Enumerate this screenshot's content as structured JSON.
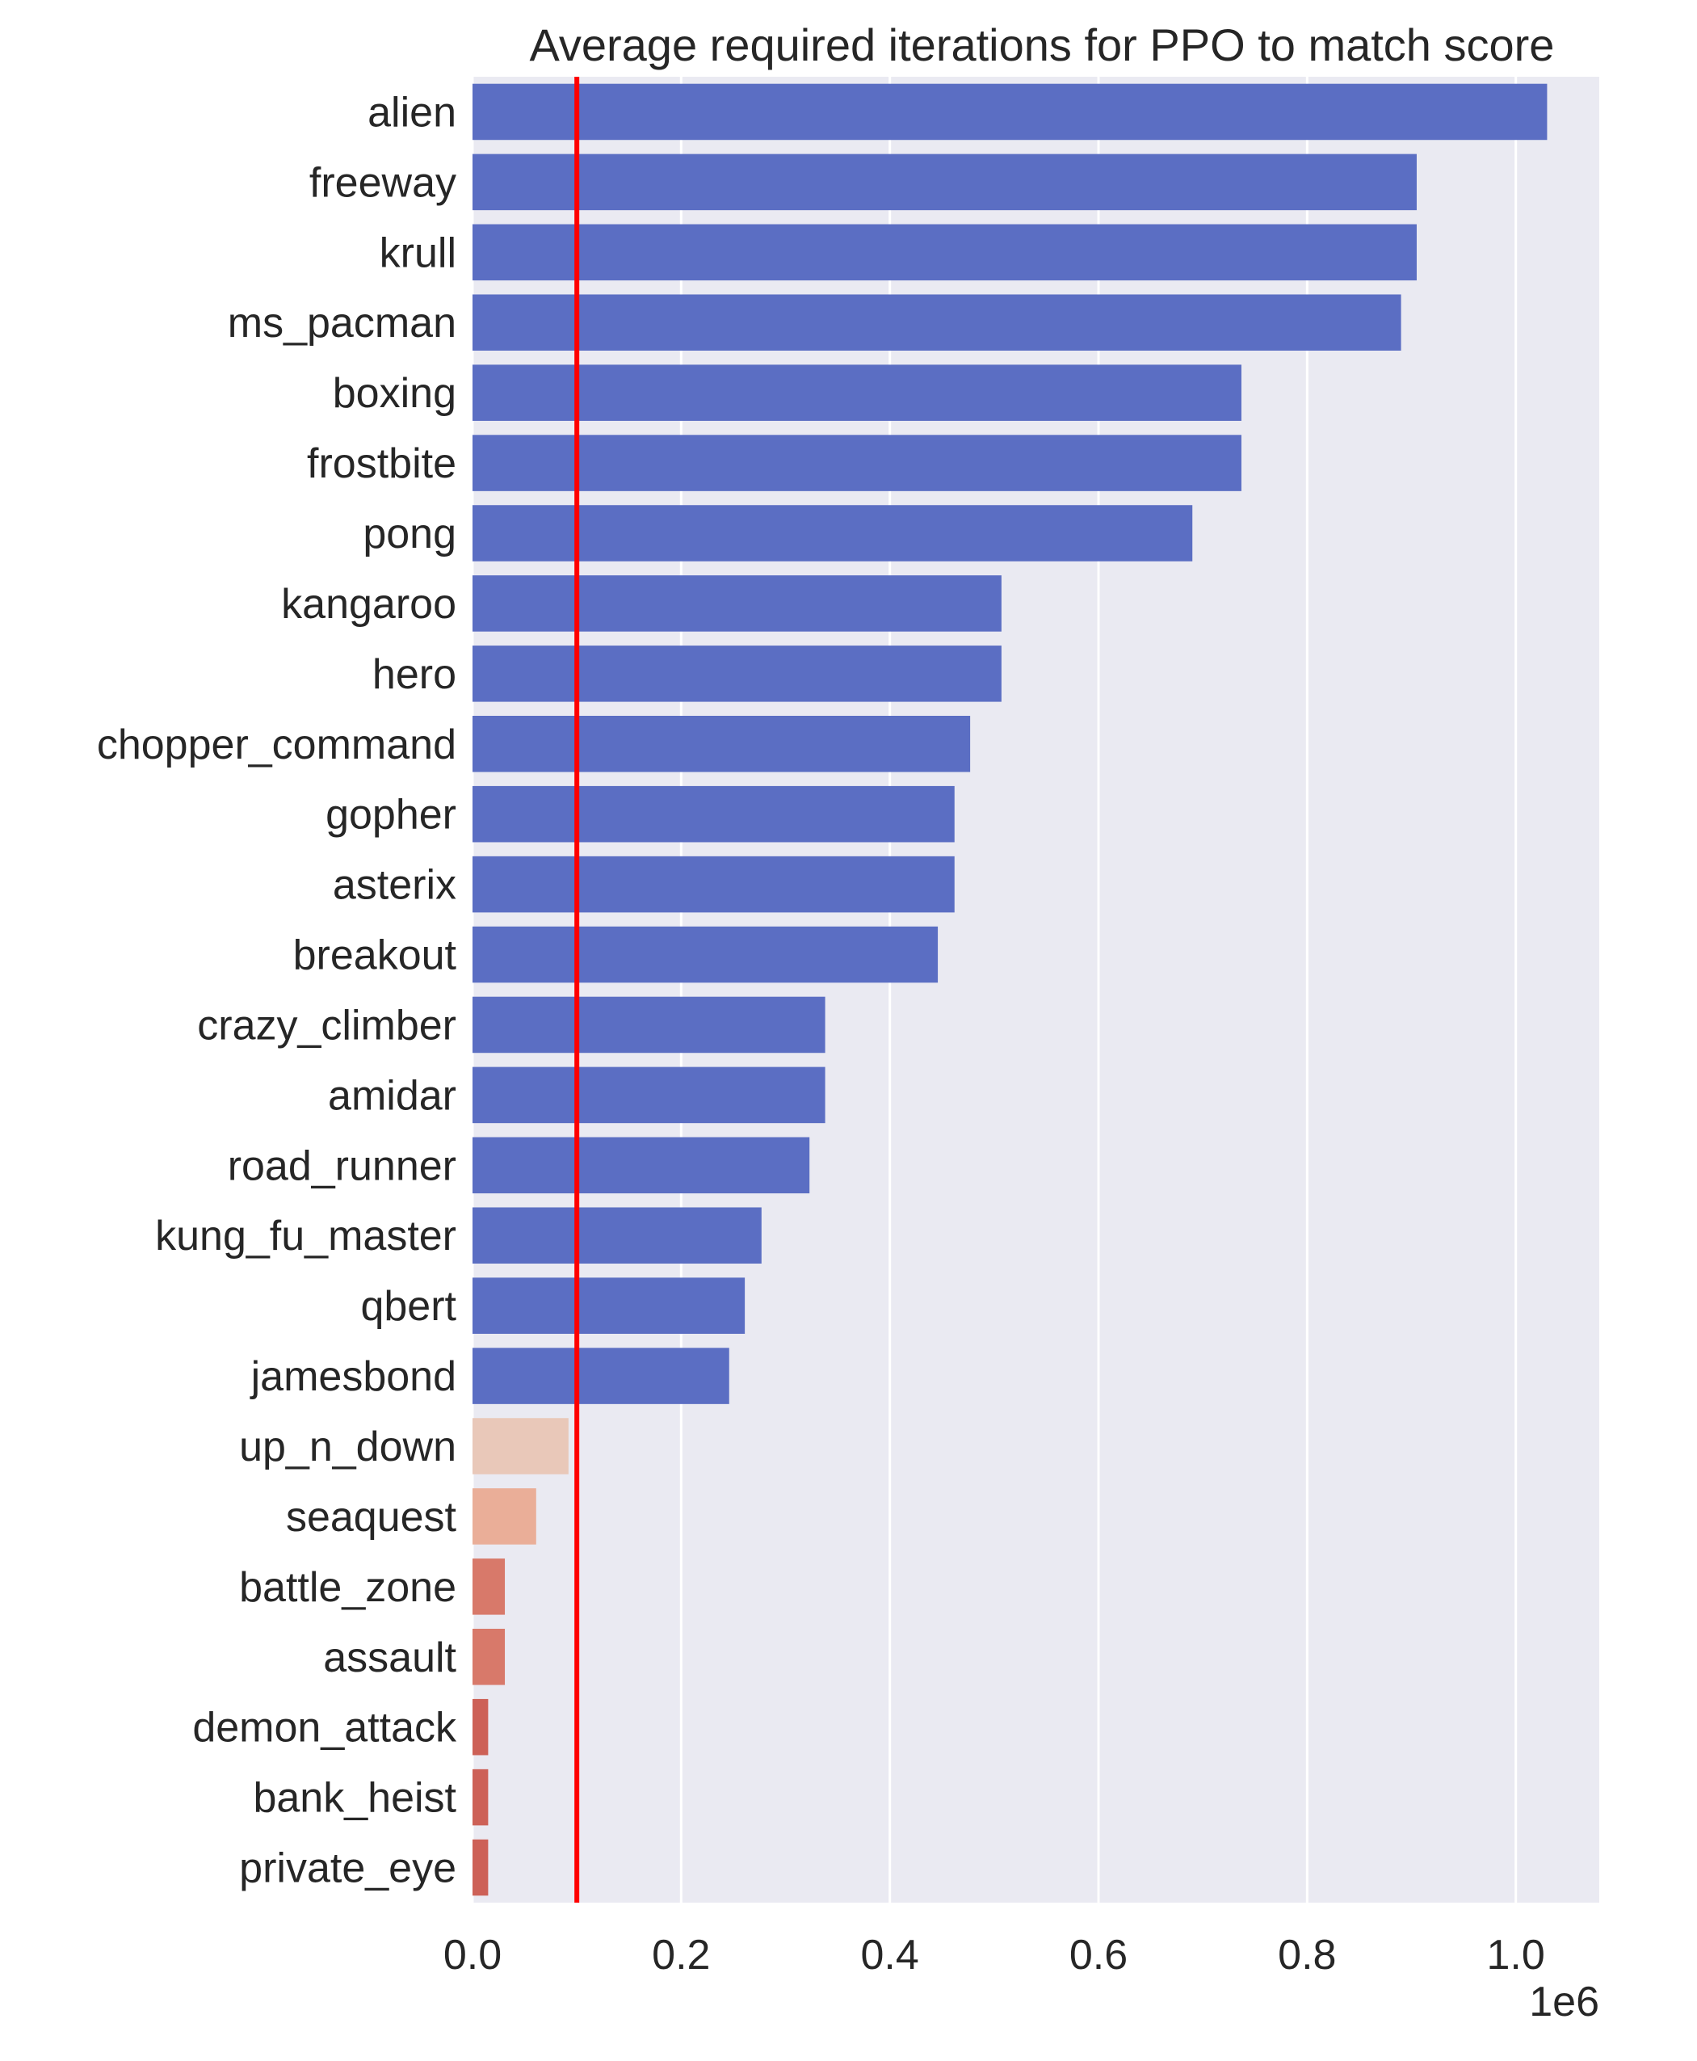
{
  "chart_data": {
    "type": "bar",
    "orientation": "horizontal",
    "title": "Average required iterations for PPO to match score",
    "xlabel": "",
    "ylabel": "",
    "offset_label": "1e6",
    "xlim": [
      0,
      1.08
    ],
    "xticks": [
      0.0,
      0.2,
      0.4,
      0.6,
      0.8,
      1.0
    ],
    "xtick_labels": [
      "0.0",
      "0.2",
      "0.4",
      "0.6",
      "0.8",
      "1.0"
    ],
    "grid": true,
    "reference_line": {
      "x": 0.1,
      "color": "#ff0000"
    },
    "categories": [
      "alien",
      "freeway",
      "krull",
      "ms_pacman",
      "boxing",
      "frostbite",
      "pong",
      "kangaroo",
      "hero",
      "chopper_command",
      "gopher",
      "asterix",
      "breakout",
      "crazy_climber",
      "amidar",
      "road_runner",
      "kung_fu_master",
      "qbert",
      "jamesbond",
      "up_n_down",
      "seaquest",
      "battle_zone",
      "assault",
      "demon_attack",
      "bank_heist",
      "private_eye"
    ],
    "values": [
      1.03,
      0.905,
      0.905,
      0.89,
      0.737,
      0.737,
      0.69,
      0.507,
      0.507,
      0.477,
      0.462,
      0.462,
      0.446,
      0.338,
      0.338,
      0.323,
      0.277,
      0.261,
      0.246,
      0.092,
      0.061,
      0.031,
      0.031,
      0.015,
      0.015,
      0.015
    ],
    "colors": [
      "#5b6ec3",
      "#5b6ec3",
      "#5b6ec3",
      "#5b6ec3",
      "#5b6ec3",
      "#5b6ec3",
      "#5b6ec3",
      "#5b6ec3",
      "#5b6ec3",
      "#5b6ec3",
      "#5b6ec3",
      "#5b6ec3",
      "#5b6ec3",
      "#5b6ec3",
      "#5b6ec3",
      "#5b6ec3",
      "#5b6ec3",
      "#5b6ec3",
      "#5b6ec3",
      "#e9c8b9",
      "#eaae98",
      "#d8796a",
      "#d8796a",
      "#cd6157",
      "#cd6157",
      "#cd6157"
    ],
    "plot_background": "#eaeaf2"
  }
}
